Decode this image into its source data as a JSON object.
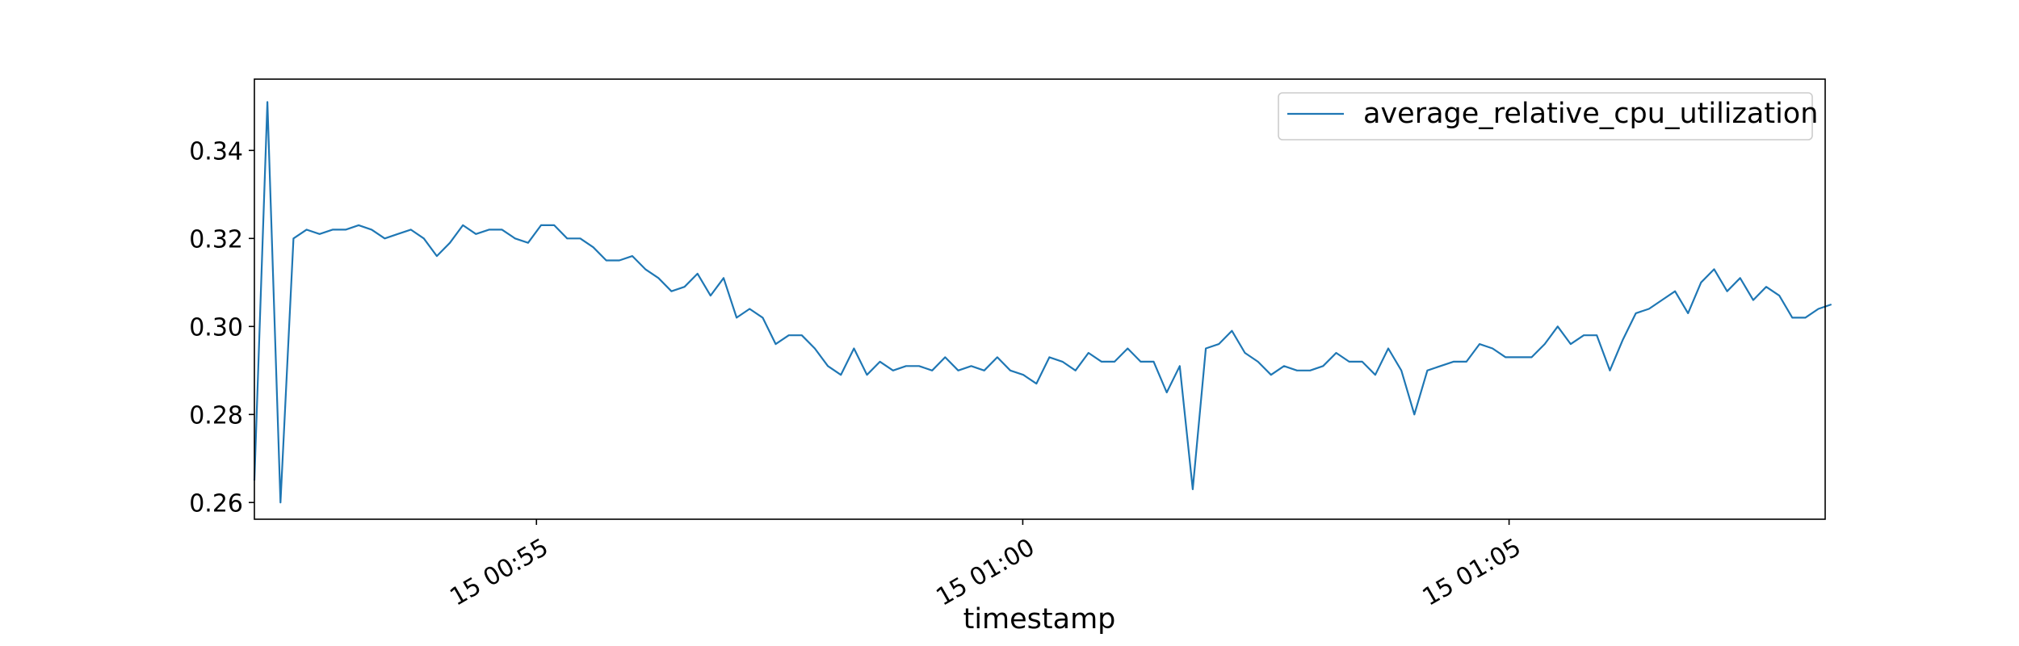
{
  "chart_data": {
    "type": "line",
    "title": "",
    "xlabel": "timestamp",
    "ylabel": "",
    "ylim": [
      0.2562,
      0.3562
    ],
    "xlim_minutes": [
      52.1,
      68.25
    ],
    "x_ticks": [
      {
        "minute": 55,
        "label": "15 00:55"
      },
      {
        "minute": 60,
        "label": "15 01:00"
      },
      {
        "minute": 65,
        "label": "15 01:05"
      }
    ],
    "y_ticks": [
      {
        "value": 0.26,
        "label": "0.26"
      },
      {
        "value": 0.28,
        "label": "0.28"
      },
      {
        "value": 0.3,
        "label": "0.30"
      },
      {
        "value": 0.32,
        "label": "0.32"
      },
      {
        "value": 0.34,
        "label": "0.34"
      }
    ],
    "grid": false,
    "legend_position": "top-right",
    "series": [
      {
        "name": "average_relative_cpu_utilization",
        "color": "#1f77b4",
        "x_start_minute": 52.1,
        "x_step_minutes": 0.134,
        "values": [
          0.265,
          0.351,
          0.26,
          0.32,
          0.322,
          0.321,
          0.322,
          0.322,
          0.323,
          0.322,
          0.32,
          0.321,
          0.322,
          0.32,
          0.316,
          0.319,
          0.323,
          0.321,
          0.322,
          0.322,
          0.32,
          0.319,
          0.323,
          0.323,
          0.32,
          0.32,
          0.318,
          0.315,
          0.315,
          0.316,
          0.313,
          0.311,
          0.308,
          0.309,
          0.312,
          0.307,
          0.311,
          0.302,
          0.304,
          0.302,
          0.296,
          0.298,
          0.298,
          0.295,
          0.291,
          0.289,
          0.295,
          0.289,
          0.292,
          0.29,
          0.291,
          0.291,
          0.29,
          0.293,
          0.29,
          0.291,
          0.29,
          0.293,
          0.29,
          0.289,
          0.287,
          0.293,
          0.292,
          0.29,
          0.294,
          0.292,
          0.292,
          0.295,
          0.292,
          0.292,
          0.285,
          0.291,
          0.263,
          0.295,
          0.296,
          0.299,
          0.294,
          0.292,
          0.289,
          0.291,
          0.29,
          0.29,
          0.291,
          0.294,
          0.292,
          0.292,
          0.289,
          0.295,
          0.29,
          0.28,
          0.29,
          0.291,
          0.292,
          0.292,
          0.296,
          0.295,
          0.293,
          0.293,
          0.293,
          0.296,
          0.3,
          0.296,
          0.298,
          0.298,
          0.29,
          0.297,
          0.303,
          0.304,
          0.306,
          0.308,
          0.303,
          0.31,
          0.313,
          0.308,
          0.311,
          0.306,
          0.309,
          0.307,
          0.302,
          0.302,
          0.304,
          0.305
        ]
      }
    ]
  }
}
